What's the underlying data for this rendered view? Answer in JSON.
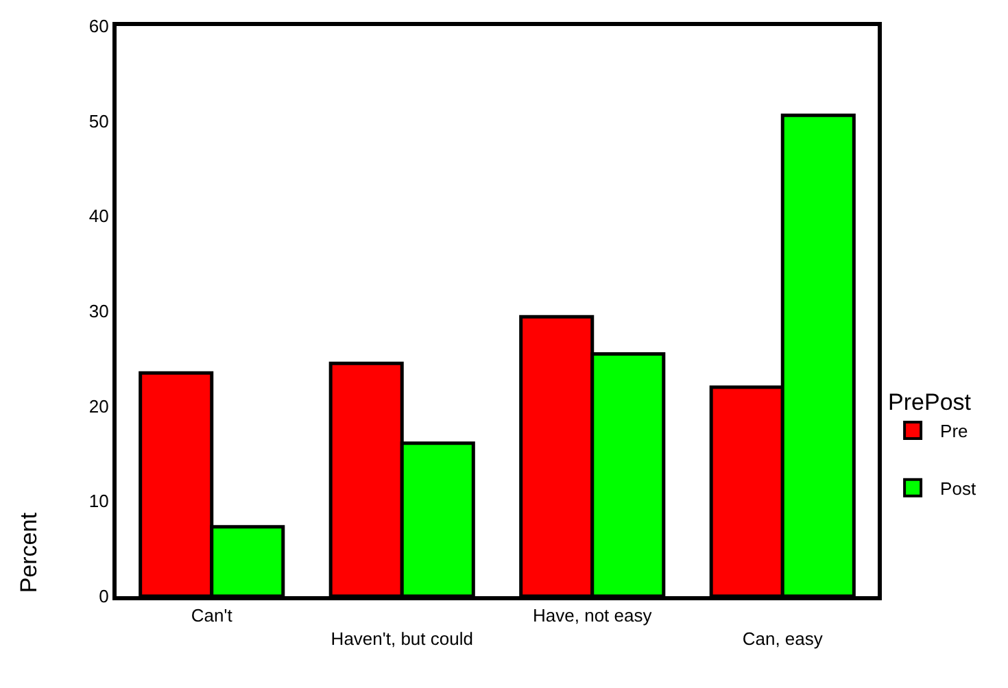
{
  "chart_data": {
    "type": "bar",
    "ylabel": "Percent",
    "legend_title": "PrePost",
    "categories": [
      "Can't",
      "Haven't, but could",
      "Have, not easy",
      "Can, easy"
    ],
    "series": [
      {
        "name": "Pre",
        "color": "#ff0000",
        "values": [
          23.5,
          24.5,
          29.4,
          22.0
        ]
      },
      {
        "name": "Post",
        "color": "#00ff00",
        "values": [
          7.3,
          16.1,
          25.5,
          50.6
        ]
      }
    ],
    "ylim": [
      0,
      60
    ],
    "yticks": [
      0,
      10,
      20,
      30,
      40,
      50,
      60
    ],
    "legend": "right"
  }
}
